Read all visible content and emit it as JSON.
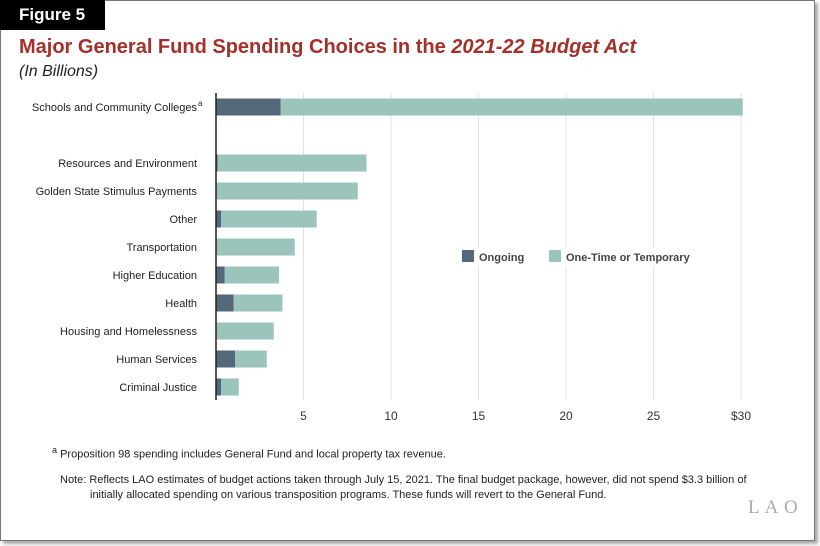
{
  "figure_label": "Figure 5",
  "title_prefix": "Major General Fund Spending Choices in the ",
  "title_italic": "2021-22 Budget Act",
  "subtitle": "(In Billions)",
  "chart_data": {
    "type": "bar",
    "orientation": "horizontal",
    "stacked": true,
    "categories": [
      "Schools and Community Colleges",
      "Resources and Environment",
      "Golden State Stimulus Payments",
      "Other",
      "Transportation",
      "Higher Education",
      "Health",
      "Housing and Homelessness",
      "Human Services",
      "Criminal Justice"
    ],
    "category_superscripts": [
      "a",
      "",
      "",
      "",
      "",
      "",
      "",
      "",
      "",
      ""
    ],
    "series": [
      {
        "name": "Ongoing",
        "color": "#536878",
        "values": [
          3.7,
          0.1,
          0,
          0.3,
          0,
          0.5,
          1.0,
          0,
          1.1,
          0.3
        ]
      },
      {
        "name": "One-Time or Temporary",
        "color": "#9bc4bd",
        "values": [
          26.4,
          8.5,
          8.1,
          5.45,
          4.5,
          3.1,
          2.8,
          3.3,
          1.8,
          1.0
        ]
      }
    ],
    "xlim": [
      0,
      30
    ],
    "x_ticks": [
      "5",
      "10",
      "15",
      "20",
      "25",
      "$30"
    ],
    "x_tick_values": [
      5,
      10,
      15,
      20,
      25,
      30
    ],
    "grid": "vertical",
    "legend_placement": "center-right"
  },
  "footnote_marker": "a",
  "footnote": "Proposition 98 spending includes General Fund and local property tax revenue.",
  "note_line1": "Note: Reflects LAO estimates of budget actions taken through July 15, 2021. The final budget package, however, did not spend $3.3 billion of",
  "note_line2": "initially allocated spending on various transposition programs. These funds will revert to the General Fund.",
  "logo": "LAO"
}
